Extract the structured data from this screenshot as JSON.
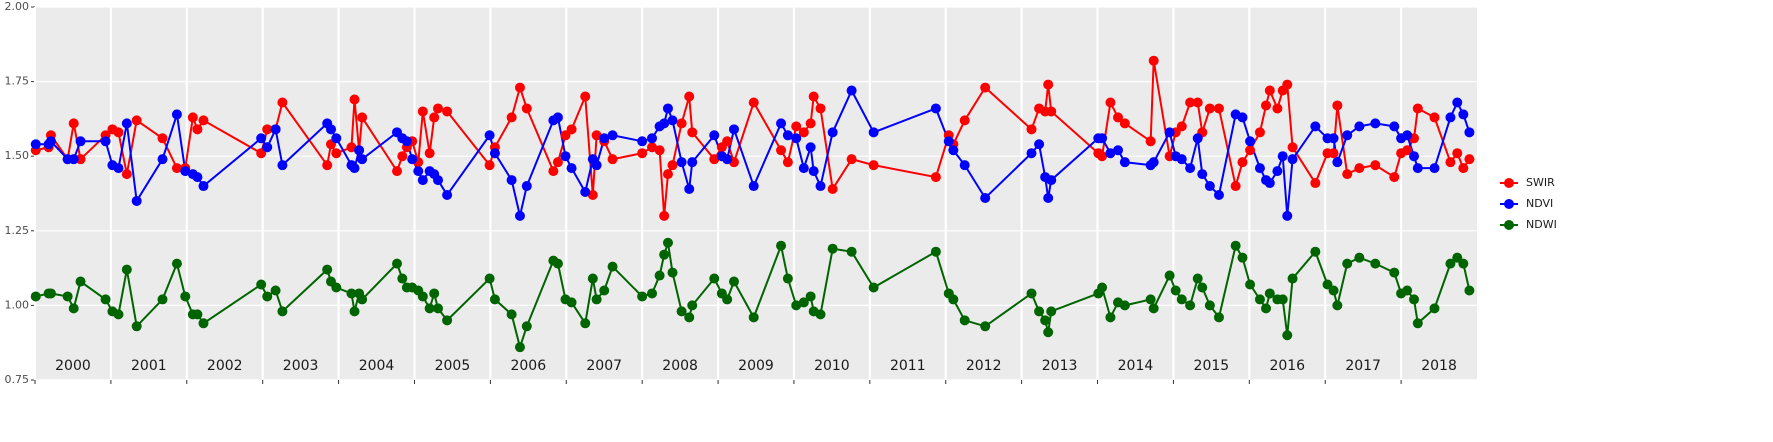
{
  "chart_data": {
    "type": "line",
    "x": [
      2000.01,
      2000.18,
      2000.21,
      2000.43,
      2000.51,
      2000.6,
      2000.93,
      2001.02,
      2001.1,
      2001.21,
      2001.34,
      2001.68,
      2001.87,
      2001.98,
      2002.08,
      2002.14,
      2002.22,
      2002.98,
      2003.06,
      2003.17,
      2003.26,
      2003.85,
      2003.9,
      2003.97,
      2004.17,
      2004.21,
      2004.27,
      2004.31,
      2004.77,
      2004.84,
      2004.9,
      2004.97,
      2005.05,
      2005.11,
      2005.2,
      2005.26,
      2005.31,
      2005.43,
      2005.99,
      2006.06,
      2006.28,
      2006.39,
      2006.48,
      2006.83,
      2006.89,
      2006.99,
      2007.07,
      2007.25,
      2007.35,
      2007.4,
      2007.5,
      2007.61,
      2008.0,
      2008.13,
      2008.23,
      2008.29,
      2008.34,
      2008.4,
      2008.52,
      2008.62,
      2008.66,
      2008.95,
      2009.05,
      2009.12,
      2009.21,
      2009.47,
      2009.83,
      2009.92,
      2010.03,
      2010.13,
      2010.22,
      2010.26,
      2010.35,
      2010.51,
      2010.76,
      2011.05,
      2011.87,
      2012.04,
      2012.1,
      2012.25,
      2012.52,
      2013.13,
      2013.23,
      2013.31,
      2013.35,
      2013.39,
      2014.01,
      2014.06,
      2014.17,
      2014.27,
      2014.36,
      2014.7,
      2014.74,
      2014.95,
      2015.03,
      2015.11,
      2015.22,
      2015.32,
      2015.38,
      2015.48,
      2015.6,
      2015.82,
      2015.91,
      2016.01,
      2016.14,
      2016.22,
      2016.27,
      2016.37,
      2016.44,
      2016.5,
      2016.57,
      2016.87,
      2017.03,
      2017.11,
      2017.16,
      2017.29,
      2017.45,
      2017.66,
      2017.91,
      2018.0,
      2018.08,
      2018.17,
      2018.22,
      2018.44,
      2018.65,
      2018.74,
      2018.82,
      2018.9
    ],
    "series": [
      {
        "name": "SWIR",
        "color": "#ff0000",
        "values": [
          1.52,
          1.53,
          1.57,
          1.49,
          1.61,
          1.49,
          1.57,
          1.59,
          1.58,
          1.44,
          1.62,
          1.56,
          1.46,
          1.46,
          1.63,
          1.59,
          1.62,
          1.51,
          1.59,
          1.59,
          1.68,
          1.47,
          1.54,
          1.51,
          1.53,
          1.69,
          1.52,
          1.63,
          1.45,
          1.5,
          1.53,
          1.55,
          1.48,
          1.65,
          1.51,
          1.63,
          1.66,
          1.65,
          1.47,
          1.53,
          1.63,
          1.73,
          1.66,
          1.45,
          1.48,
          1.57,
          1.59,
          1.7,
          1.37,
          1.57,
          1.55,
          1.49,
          1.51,
          1.53,
          1.52,
          1.3,
          1.44,
          1.47,
          1.61,
          1.7,
          1.58,
          1.49,
          1.53,
          1.55,
          1.48,
          1.68,
          1.52,
          1.48,
          1.6,
          1.58,
          1.61,
          1.7,
          1.66,
          1.39,
          1.49,
          1.47,
          1.43,
          1.57,
          1.54,
          1.62,
          1.73,
          1.59,
          1.66,
          1.65,
          1.74,
          1.65,
          1.51,
          1.5,
          1.68,
          1.63,
          1.61,
          1.55,
          1.82,
          1.5,
          1.58,
          1.6,
          1.68,
          1.68,
          1.58,
          1.66,
          1.66,
          1.4,
          1.48,
          1.52,
          1.58,
          1.67,
          1.72,
          1.66,
          1.72,
          1.74,
          1.53,
          1.41,
          1.51,
          1.51,
          1.67,
          1.44,
          1.46,
          1.47,
          1.43,
          1.51,
          1.52,
          1.56,
          1.66,
          1.63,
          1.48,
          1.51,
          1.46,
          1.49
        ]
      },
      {
        "name": "NDVI",
        "color": "#0000ff",
        "values": [
          1.54,
          1.54,
          1.55,
          1.49,
          1.49,
          1.55,
          1.55,
          1.47,
          1.46,
          1.61,
          1.35,
          1.49,
          1.64,
          1.45,
          1.44,
          1.43,
          1.4,
          1.56,
          1.53,
          1.59,
          1.47,
          1.61,
          1.59,
          1.56,
          1.47,
          1.46,
          1.52,
          1.49,
          1.58,
          1.56,
          1.55,
          1.49,
          1.45,
          1.42,
          1.45,
          1.44,
          1.42,
          1.37,
          1.57,
          1.51,
          1.42,
          1.3,
          1.4,
          1.62,
          1.63,
          1.5,
          1.46,
          1.38,
          1.49,
          1.47,
          1.56,
          1.57,
          1.55,
          1.56,
          1.6,
          1.61,
          1.66,
          1.62,
          1.48,
          1.39,
          1.48,
          1.57,
          1.5,
          1.49,
          1.59,
          1.4,
          1.61,
          1.57,
          1.56,
          1.46,
          1.53,
          1.45,
          1.4,
          1.58,
          1.72,
          1.58,
          1.66,
          1.55,
          1.52,
          1.47,
          1.36,
          1.51,
          1.54,
          1.43,
          1.36,
          1.42,
          1.56,
          1.56,
          1.51,
          1.52,
          1.48,
          1.47,
          1.48,
          1.58,
          1.5,
          1.49,
          1.46,
          1.56,
          1.44,
          1.4,
          1.37,
          1.64,
          1.63,
          1.55,
          1.46,
          1.42,
          1.41,
          1.45,
          1.5,
          1.3,
          1.49,
          1.6,
          1.56,
          1.56,
          1.48,
          1.57,
          1.6,
          1.61,
          1.6,
          1.56,
          1.57,
          1.5,
          1.46,
          1.46,
          1.63,
          1.68,
          1.64,
          1.58
        ]
      },
      {
        "name": "NDWI",
        "color": "#006400",
        "values": [
          1.03,
          1.04,
          1.04,
          1.03,
          0.99,
          1.08,
          1.02,
          0.98,
          0.97,
          1.12,
          0.93,
          1.02,
          1.14,
          1.03,
          0.97,
          0.97,
          0.94,
          1.07,
          1.03,
          1.05,
          0.98,
          1.12,
          1.08,
          1.06,
          1.04,
          0.98,
          1.04,
          1.02,
          1.14,
          1.09,
          1.06,
          1.06,
          1.05,
          1.03,
          0.99,
          1.04,
          0.99,
          0.95,
          1.09,
          1.02,
          0.97,
          0.86,
          0.93,
          1.15,
          1.14,
          1.02,
          1.01,
          0.94,
          1.09,
          1.02,
          1.05,
          1.13,
          1.03,
          1.04,
          1.1,
          1.17,
          1.21,
          1.11,
          0.98,
          0.96,
          1.0,
          1.09,
          1.04,
          1.02,
          1.08,
          0.96,
          1.2,
          1.09,
          1.0,
          1.01,
          1.03,
          0.98,
          0.97,
          1.19,
          1.18,
          1.06,
          1.18,
          1.04,
          1.02,
          0.95,
          0.93,
          1.04,
          0.98,
          0.95,
          0.91,
          0.98,
          1.04,
          1.06,
          0.96,
          1.01,
          1.0,
          1.02,
          0.99,
          1.1,
          1.05,
          1.02,
          1.0,
          1.09,
          1.06,
          1.0,
          0.96,
          1.2,
          1.16,
          1.07,
          1.02,
          0.99,
          1.04,
          1.02,
          1.02,
          0.9,
          1.09,
          1.18,
          1.07,
          1.05,
          1.0,
          1.14,
          1.16,
          1.14,
          1.11,
          1.04,
          1.05,
          1.02,
          0.94,
          0.99,
          1.14,
          1.16,
          1.14,
          1.05
        ]
      }
    ],
    "xlim": [
      2000,
      2019
    ],
    "xticks": [
      2000,
      2001,
      2002,
      2003,
      2004,
      2005,
      2006,
      2007,
      2008,
      2009,
      2010,
      2011,
      2012,
      2013,
      2014,
      2015,
      2016,
      2017,
      2018
    ],
    "ylim": [
      0.75,
      2.0
    ],
    "yticks": [
      {
        "value": 0.75,
        "label": "0.75"
      },
      {
        "value": 1.0,
        "label": "1.00"
      },
      {
        "value": 1.25,
        "label": "1.25"
      },
      {
        "value": 1.5,
        "label": "1.50"
      },
      {
        "value": 1.75,
        "label": "1.75"
      },
      {
        "value": 2.0,
        "label": "2.00"
      }
    ],
    "grid": true,
    "legend": "right"
  }
}
